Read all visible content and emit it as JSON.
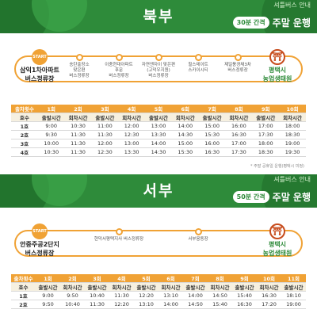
{
  "north": {
    "region": "북부",
    "interval": "30분 간격",
    "operation": "주말 운행",
    "brand": "셔틀버스 안내",
    "start_mark": "START",
    "end_mark": "⛩",
    "stops": [
      "삼익1차아파트\n버스정류장",
      "송탄출장소\n맞은편\n버스정류장",
      "이충현대아파트\n후문\n버스정류장",
      "자연앤자이 맞은편\n(고덕우지원)\n버스정류장",
      "힐스테이트\n스카이시티",
      "제일풍경채3차\n버스정류장",
      "평택시\n농업생태원"
    ],
    "table": {
      "round_label": "출차횟수",
      "rounds": [
        "1회",
        "2회",
        "3회",
        "4회",
        "5회",
        "6회",
        "7회",
        "8회",
        "9회",
        "10회"
      ],
      "ho_label": "호수",
      "sub": [
        "출발시간",
        "회차시간",
        "출발시간",
        "회차시간",
        "출발시간",
        "회차시간",
        "출발시간",
        "회차시간",
        "출발시간",
        "회차시간"
      ],
      "rows": [
        [
          "1호",
          "9:00",
          "10:30",
          "11:00",
          "12:00",
          "13:00",
          "14:00",
          "15:00",
          "16:00",
          "17:00",
          "18:00"
        ],
        [
          "2호",
          "9:30",
          "11:30",
          "11:30",
          "12:30",
          "13:30",
          "14:30",
          "15:30",
          "16:30",
          "17:30",
          "18:30"
        ],
        [
          "3호",
          "10:00",
          "11:30",
          "12:00",
          "13:00",
          "14:00",
          "15:00",
          "16:00",
          "17:00",
          "18:00",
          "19:00"
        ],
        [
          "4호",
          "10:30",
          "11:30",
          "12:30",
          "13:30",
          "14:30",
          "15:30",
          "16:30",
          "17:30",
          "18:30",
          "19:30"
        ]
      ]
    },
    "note": "* 주말 공휴일 운행(평택시 미정)"
  },
  "west": {
    "region": "서부",
    "interval": "50분 간격",
    "operation": "주말 운행",
    "brand": "셔틀버스 안내",
    "start_mark": "START",
    "end_mark": "⛩",
    "stops": [
      "안중주공2단지\n버스정류장",
      "현덕서평택지사 버스정류장",
      "서부웅동장",
      "평택시\n농업생태원"
    ],
    "table": {
      "round_label": "출차횟수",
      "rounds": [
        "1회",
        "2회",
        "3회",
        "4회",
        "5회",
        "6회",
        "7회",
        "8회",
        "9회",
        "10회",
        "11회"
      ],
      "ho_label": "호수",
      "sub": [
        "출발시간",
        "회차시간",
        "출발시간",
        "회차시간",
        "출발시간",
        "회차시간",
        "출발시간",
        "회차시간",
        "출발시간",
        "회차시간",
        "출발시간"
      ],
      "rows": [
        [
          "1호",
          "9:00",
          "9:50",
          "10:40",
          "11:30",
          "12:20",
          "13:10",
          "14:00",
          "14:50",
          "15:40",
          "16:30",
          "18:10"
        ],
        [
          "2호",
          "9:50",
          "10:40",
          "11:30",
          "12:20",
          "13:10",
          "14:00",
          "14:50",
          "15:40",
          "16:30",
          "17:20",
          "19:00"
        ]
      ]
    }
  }
}
